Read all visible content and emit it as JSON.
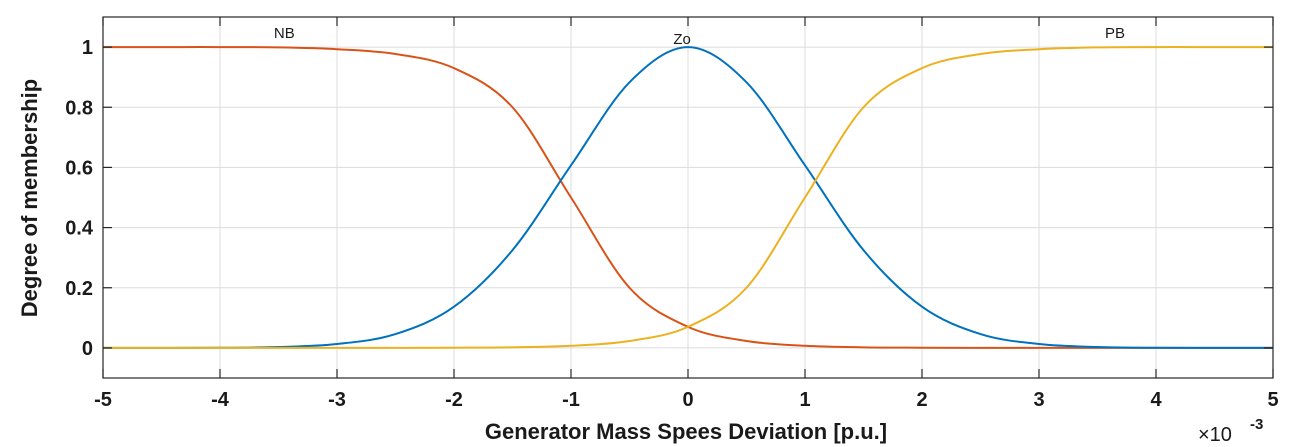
{
  "chart_data": {
    "type": "line",
    "xlabel": "Generator Mass Spees Deviation [p.u.]",
    "ylabel": "Degree of membership",
    "x_exponent_base": "×10",
    "x_exponent_power": "-3",
    "xlim": [
      -5,
      5
    ],
    "ylim": [
      -0.1,
      1.1
    ],
    "xticks": [
      -5,
      -4,
      -3,
      -2,
      -1,
      0,
      1,
      2,
      3,
      4,
      5
    ],
    "yticks": [
      0,
      0.2,
      0.4,
      0.6,
      0.8,
      1
    ],
    "xtick_labels": [
      "-5",
      "-4",
      "-3",
      "-2",
      "-1",
      "0",
      "1",
      "2",
      "3",
      "4",
      "5"
    ],
    "ytick_labels": [
      "0",
      "0.2",
      "0.4",
      "0.6",
      "0.8",
      "1"
    ],
    "grid": true,
    "series": [
      {
        "name": "NB",
        "color": "#d95319",
        "label_at": [
          -3.45,
          1.02
        ],
        "x": [
          -5,
          -4.5,
          -4,
          -3.5,
          -3,
          -2.5,
          -2,
          -1.5,
          -1,
          -0.5,
          0,
          0.5,
          1,
          1.5,
          2,
          2.5,
          3,
          3.5,
          4,
          4.5,
          5
        ],
        "y": [
          1.0,
          1.0,
          1.0,
          0.999,
          0.993,
          0.977,
          0.93,
          0.8,
          0.5,
          0.2,
          0.07,
          0.023,
          0.007,
          0.002,
          0.0007,
          0.0002,
          0.0,
          0.0,
          0.0,
          0.0,
          0.0
        ]
      },
      {
        "name": "Zo",
        "color": "#0072bd",
        "label_at": [
          -0.05,
          1.0
        ],
        "x": [
          -5,
          -4.5,
          -4,
          -3.5,
          -3,
          -2.5,
          -2,
          -1.5,
          -1,
          -0.5,
          0,
          0.5,
          1,
          1.5,
          2,
          2.5,
          3,
          3.5,
          4,
          4.5,
          5
        ],
        "y": [
          0.0,
          0.0,
          0.0004,
          0.003,
          0.013,
          0.046,
          0.137,
          0.325,
          0.607,
          0.883,
          1.0,
          0.883,
          0.607,
          0.325,
          0.137,
          0.046,
          0.013,
          0.003,
          0.0004,
          0.0,
          0.0
        ]
      },
      {
        "name": "PB",
        "color": "#edb120",
        "label_at": [
          3.65,
          1.02
        ],
        "x": [
          -5,
          -4.5,
          -4,
          -3.5,
          -3,
          -2.5,
          -2,
          -1.5,
          -1,
          -0.5,
          0,
          0.5,
          1,
          1.5,
          2,
          2.5,
          3,
          3.5,
          4,
          4.5,
          5
        ],
        "y": [
          0.0,
          0.0,
          0.0,
          0.0,
          0.0,
          0.0002,
          0.0007,
          0.002,
          0.007,
          0.023,
          0.07,
          0.2,
          0.5,
          0.8,
          0.93,
          0.977,
          0.993,
          0.999,
          1.0,
          1.0,
          1.0
        ]
      }
    ]
  }
}
